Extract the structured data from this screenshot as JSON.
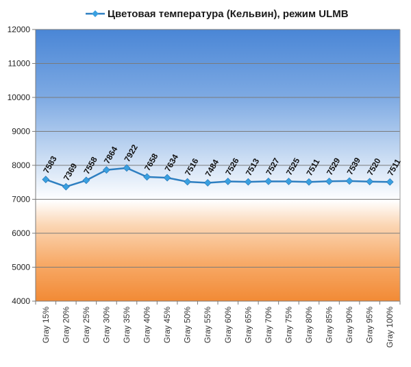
{
  "chart_data": {
    "type": "line",
    "title": "",
    "xlabel": "",
    "ylabel": "",
    "categories": [
      "Gray 15%",
      "Gray 20%",
      "Gray 25%",
      "Gray 30%",
      "Gray 35%",
      "Gray 40%",
      "Gray 45%",
      "Gray 50%",
      "Gray 55%",
      "Gray 60%",
      "Gray 65%",
      "Gray 70%",
      "Gray 75%",
      "Gray 80%",
      "Gray 85%",
      "Gray 90%",
      "Gray 95%",
      "Gray 100%"
    ],
    "series": [
      {
        "name": "Цветовая температура (Кельвин), режим ULMB",
        "values": [
          7583,
          7369,
          7558,
          7864,
          7922,
          7658,
          7634,
          7516,
          7484,
          7526,
          7513,
          7527,
          7525,
          7511,
          7529,
          7539,
          7520,
          7511
        ],
        "color": "#2e7fc1",
        "marker_color": "#3aa0e0"
      }
    ],
    "ylim": [
      4000,
      12000
    ],
    "yticks": [
      4000,
      5000,
      6000,
      7000,
      8000,
      9000,
      10000,
      11000,
      12000
    ],
    "grid": true,
    "legend_position": "top",
    "background": "vertical gradient: blue top, white near 6500, orange bottom"
  }
}
